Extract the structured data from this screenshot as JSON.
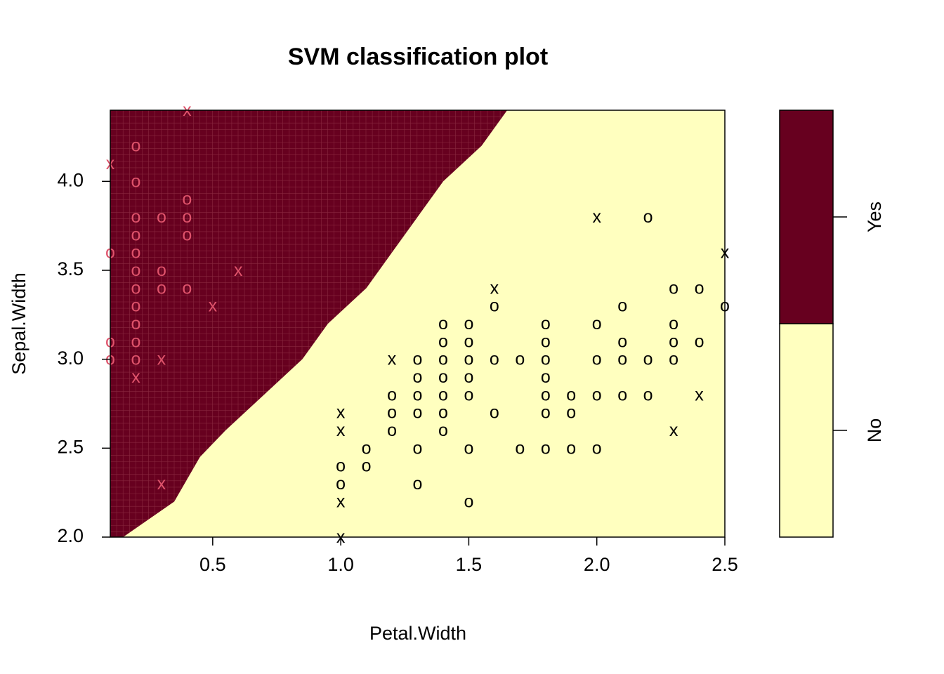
{
  "chart_data": {
    "type": "scatter",
    "title": "SVM classification plot",
    "xlabel": "Petal.Width",
    "ylabel": "Sepal.Width",
    "xlim": [
      0.1,
      2.5
    ],
    "ylim": [
      2.0,
      4.4
    ],
    "xticks": [
      "0.5",
      "1.0",
      "1.5",
      "2.0",
      "2.5"
    ],
    "yticks": [
      "2.0",
      "2.5",
      "3.0",
      "3.5",
      "4.0"
    ],
    "legend": {
      "position": "right",
      "categories": [
        "No",
        "Yes"
      ],
      "colors": {
        "No": "#FFFFBF",
        "Yes": "#67001F"
      }
    },
    "colors": {
      "yes_region": "#67001F",
      "no_region": "#FFFFBF",
      "yes_points": "#DF536B",
      "no_points": "#000000"
    },
    "decision_boundary": [
      {
        "sepal_width": 2.0,
        "petal_width": 0.15
      },
      {
        "sepal_width": 2.2,
        "petal_width": 0.35
      },
      {
        "sepal_width": 2.45,
        "petal_width": 0.45
      },
      {
        "sepal_width": 2.6,
        "petal_width": 0.55
      },
      {
        "sepal_width": 2.8,
        "petal_width": 0.7
      },
      {
        "sepal_width": 3.0,
        "petal_width": 0.85
      },
      {
        "sepal_width": 3.2,
        "petal_width": 0.95
      },
      {
        "sepal_width": 3.4,
        "petal_width": 1.1
      },
      {
        "sepal_width": 3.6,
        "petal_width": 1.2
      },
      {
        "sepal_width": 3.8,
        "petal_width": 1.3
      },
      {
        "sepal_width": 4.0,
        "petal_width": 1.4
      },
      {
        "sepal_width": 4.2,
        "petal_width": 1.55
      },
      {
        "sepal_width": 4.4,
        "petal_width": 1.65
      }
    ],
    "series": [
      {
        "name": "Yes",
        "points": [
          {
            "x": 0.2,
            "y": 4.2,
            "m": "o"
          },
          {
            "x": 0.2,
            "y": 4.0,
            "m": "o"
          },
          {
            "x": 0.4,
            "y": 3.9,
            "m": "o"
          },
          {
            "x": 0.2,
            "y": 3.8,
            "m": "o"
          },
          {
            "x": 0.3,
            "y": 3.8,
            "m": "o"
          },
          {
            "x": 0.4,
            "y": 3.8,
            "m": "o"
          },
          {
            "x": 0.2,
            "y": 3.7,
            "m": "o"
          },
          {
            "x": 0.4,
            "y": 3.7,
            "m": "o"
          },
          {
            "x": 0.2,
            "y": 3.6,
            "m": "o"
          },
          {
            "x": 0.1,
            "y": 3.6,
            "m": "o"
          },
          {
            "x": 0.2,
            "y": 3.5,
            "m": "o"
          },
          {
            "x": 0.3,
            "y": 3.5,
            "m": "o"
          },
          {
            "x": 0.2,
            "y": 3.4,
            "m": "o"
          },
          {
            "x": 0.3,
            "y": 3.4,
            "m": "o"
          },
          {
            "x": 0.4,
            "y": 3.4,
            "m": "o"
          },
          {
            "x": 0.2,
            "y": 3.3,
            "m": "o"
          },
          {
            "x": 0.2,
            "y": 3.2,
            "m": "o"
          },
          {
            "x": 0.2,
            "y": 3.1,
            "m": "o"
          },
          {
            "x": 0.1,
            "y": 3.1,
            "m": "o"
          },
          {
            "x": 0.2,
            "y": 3.0,
            "m": "o"
          },
          {
            "x": 0.1,
            "y": 3.0,
            "m": "o"
          },
          {
            "x": 0.4,
            "y": 4.4,
            "m": "x"
          },
          {
            "x": 0.1,
            "y": 4.1,
            "m": "x"
          },
          {
            "x": 0.6,
            "y": 3.5,
            "m": "x"
          },
          {
            "x": 0.5,
            "y": 3.3,
            "m": "x"
          },
          {
            "x": 0.3,
            "y": 3.0,
            "m": "x"
          },
          {
            "x": 0.2,
            "y": 2.9,
            "m": "x"
          },
          {
            "x": 0.3,
            "y": 2.3,
            "m": "x"
          }
        ]
      },
      {
        "name": "No",
        "points": [
          {
            "x": 2.2,
            "y": 3.8,
            "m": "o"
          },
          {
            "x": 2.3,
            "y": 3.4,
            "m": "o"
          },
          {
            "x": 2.4,
            "y": 3.4,
            "m": "o"
          },
          {
            "x": 1.6,
            "y": 3.3,
            "m": "o"
          },
          {
            "x": 2.1,
            "y": 3.3,
            "m": "o"
          },
          {
            "x": 2.5,
            "y": 3.3,
            "m": "o"
          },
          {
            "x": 1.4,
            "y": 3.2,
            "m": "o"
          },
          {
            "x": 1.5,
            "y": 3.2,
            "m": "o"
          },
          {
            "x": 1.8,
            "y": 3.2,
            "m": "o"
          },
          {
            "x": 2.0,
            "y": 3.2,
            "m": "o"
          },
          {
            "x": 2.3,
            "y": 3.2,
            "m": "o"
          },
          {
            "x": 1.4,
            "y": 3.1,
            "m": "o"
          },
          {
            "x": 1.5,
            "y": 3.1,
            "m": "o"
          },
          {
            "x": 1.8,
            "y": 3.1,
            "m": "o"
          },
          {
            "x": 2.1,
            "y": 3.1,
            "m": "o"
          },
          {
            "x": 2.3,
            "y": 3.1,
            "m": "o"
          },
          {
            "x": 2.4,
            "y": 3.1,
            "m": "o"
          },
          {
            "x": 1.3,
            "y": 3.0,
            "m": "o"
          },
          {
            "x": 1.4,
            "y": 3.0,
            "m": "o"
          },
          {
            "x": 1.5,
            "y": 3.0,
            "m": "o"
          },
          {
            "x": 1.6,
            "y": 3.0,
            "m": "o"
          },
          {
            "x": 1.7,
            "y": 3.0,
            "m": "o"
          },
          {
            "x": 1.8,
            "y": 3.0,
            "m": "o"
          },
          {
            "x": 2.0,
            "y": 3.0,
            "m": "o"
          },
          {
            "x": 2.1,
            "y": 3.0,
            "m": "o"
          },
          {
            "x": 2.2,
            "y": 3.0,
            "m": "o"
          },
          {
            "x": 2.3,
            "y": 3.0,
            "m": "o"
          },
          {
            "x": 1.3,
            "y": 2.9,
            "m": "o"
          },
          {
            "x": 1.4,
            "y": 2.9,
            "m": "o"
          },
          {
            "x": 1.5,
            "y": 2.9,
            "m": "o"
          },
          {
            "x": 1.8,
            "y": 2.9,
            "m": "o"
          },
          {
            "x": 1.2,
            "y": 2.8,
            "m": "o"
          },
          {
            "x": 1.3,
            "y": 2.8,
            "m": "o"
          },
          {
            "x": 1.4,
            "y": 2.8,
            "m": "o"
          },
          {
            "x": 1.5,
            "y": 2.8,
            "m": "o"
          },
          {
            "x": 1.8,
            "y": 2.8,
            "m": "o"
          },
          {
            "x": 1.9,
            "y": 2.8,
            "m": "o"
          },
          {
            "x": 2.0,
            "y": 2.8,
            "m": "o"
          },
          {
            "x": 2.1,
            "y": 2.8,
            "m": "o"
          },
          {
            "x": 2.2,
            "y": 2.8,
            "m": "o"
          },
          {
            "x": 1.2,
            "y": 2.7,
            "m": "o"
          },
          {
            "x": 1.3,
            "y": 2.7,
            "m": "o"
          },
          {
            "x": 1.4,
            "y": 2.7,
            "m": "o"
          },
          {
            "x": 1.6,
            "y": 2.7,
            "m": "o"
          },
          {
            "x": 1.8,
            "y": 2.7,
            "m": "o"
          },
          {
            "x": 1.9,
            "y": 2.7,
            "m": "o"
          },
          {
            "x": 1.2,
            "y": 2.6,
            "m": "o"
          },
          {
            "x": 1.4,
            "y": 2.6,
            "m": "o"
          },
          {
            "x": 1.1,
            "y": 2.5,
            "m": "o"
          },
          {
            "x": 1.3,
            "y": 2.5,
            "m": "o"
          },
          {
            "x": 1.5,
            "y": 2.5,
            "m": "o"
          },
          {
            "x": 1.7,
            "y": 2.5,
            "m": "o"
          },
          {
            "x": 1.8,
            "y": 2.5,
            "m": "o"
          },
          {
            "x": 1.9,
            "y": 2.5,
            "m": "o"
          },
          {
            "x": 2.0,
            "y": 2.5,
            "m": "o"
          },
          {
            "x": 1.0,
            "y": 2.4,
            "m": "o"
          },
          {
            "x": 1.1,
            "y": 2.4,
            "m": "o"
          },
          {
            "x": 1.0,
            "y": 2.3,
            "m": "o"
          },
          {
            "x": 1.3,
            "y": 2.3,
            "m": "o"
          },
          {
            "x": 1.5,
            "y": 2.2,
            "m": "o"
          },
          {
            "x": 2.0,
            "y": 3.8,
            "m": "x"
          },
          {
            "x": 2.5,
            "y": 3.6,
            "m": "x"
          },
          {
            "x": 1.6,
            "y": 3.4,
            "m": "x"
          },
          {
            "x": 1.2,
            "y": 3.0,
            "m": "x"
          },
          {
            "x": 2.4,
            "y": 2.8,
            "m": "x"
          },
          {
            "x": 1.0,
            "y": 2.7,
            "m": "x"
          },
          {
            "x": 1.0,
            "y": 2.6,
            "m": "x"
          },
          {
            "x": 2.3,
            "y": 2.6,
            "m": "x"
          },
          {
            "x": 1.0,
            "y": 2.2,
            "m": "x"
          },
          {
            "x": 1.0,
            "y": 2.0,
            "m": "x"
          }
        ]
      }
    ]
  }
}
